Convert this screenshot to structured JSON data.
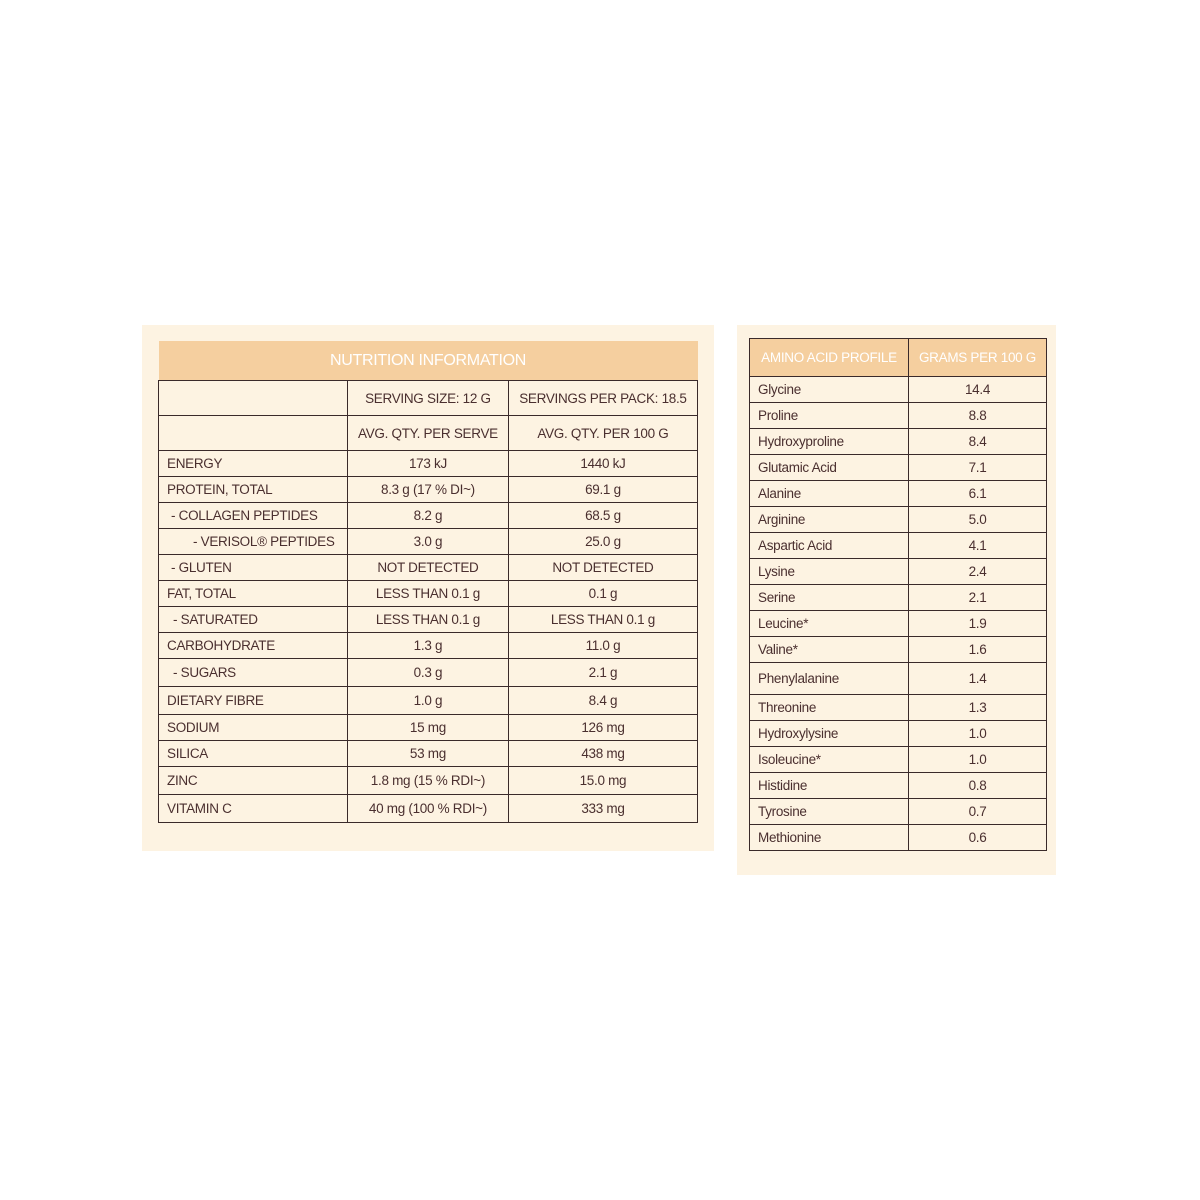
{
  "nutrition": {
    "title": "NUTRITION INFORMATION",
    "serving_size": "SERVING SIZE: 12 G",
    "servings_per_pack": "SERVINGS PER PACK: 18.5",
    "col_per_serve": "AVG. QTY.  PER SERVE",
    "col_per_100g": "AVG. QTY. PER 100 G",
    "rows": [
      {
        "name": "ENERGY",
        "serve": "173 kJ",
        "per100": "1440 kJ"
      },
      {
        "name": "PROTEIN, TOTAL",
        "serve": "8.3 g (17 % DI~)",
        "per100": "69.1 g"
      },
      {
        "name": "- COLLAGEN PEPTIDES",
        "serve": "8.2 g",
        "per100": "68.5 g"
      },
      {
        "name": "- VERISOL® PEPTIDES",
        "serve": "3.0 g",
        "per100": "25.0 g"
      },
      {
        "name": "- GLUTEN",
        "serve": "NOT DETECTED",
        "per100": "NOT DETECTED"
      },
      {
        "name": "FAT, TOTAL",
        "serve": "LESS THAN 0.1 g",
        "per100": "0.1 g"
      },
      {
        "name": "- SATURATED",
        "serve": "LESS THAN 0.1 g",
        "per100": "LESS THAN 0.1 g"
      },
      {
        "name": "CARBOHYDRATE",
        "serve": "1.3 g",
        "per100": "11.0 g"
      },
      {
        "name": "- SUGARS",
        "serve": "0.3 g",
        "per100": "2.1 g"
      },
      {
        "name": "DIETARY FIBRE",
        "serve": "1.0 g",
        "per100": "8.4 g"
      },
      {
        "name": "SODIUM",
        "serve": "15 mg",
        "per100": "126 mg"
      },
      {
        "name": "SILICA",
        "serve": "53 mg",
        "per100": "438 mg"
      },
      {
        "name": "ZINC",
        "serve": "1.8 mg (15 % RDI~)",
        "per100": "15.0 mg"
      },
      {
        "name": "VITAMIN C",
        "serve": "40 mg (100 % RDI~)",
        "per100": "333 mg"
      }
    ]
  },
  "amino": {
    "col_name": "AMINO ACID PROFILE",
    "col_value": "GRAMS PER 100 G",
    "rows": [
      {
        "name": "Glycine",
        "value": "14.4"
      },
      {
        "name": "Proline",
        "value": "8.8"
      },
      {
        "name": "Hydroxyproline",
        "value": "8.4"
      },
      {
        "name": "Glutamic Acid",
        "value": "7.1"
      },
      {
        "name": "Alanine",
        "value": "6.1"
      },
      {
        "name": "Arginine",
        "value": "5.0"
      },
      {
        "name": "Aspartic Acid",
        "value": "4.1"
      },
      {
        "name": "Lysine",
        "value": "2.4"
      },
      {
        "name": "Serine",
        "value": "2.1"
      },
      {
        "name": "Leucine*",
        "value": "1.9"
      },
      {
        "name": "Valine*",
        "value": "1.6"
      },
      {
        "name": "Phenylalanine",
        "value": "1.4"
      },
      {
        "name": "Threonine",
        "value": "1.3"
      },
      {
        "name": "Hydroxylysine",
        "value": "1.0"
      },
      {
        "name": "Isoleucine*",
        "value": "1.0"
      },
      {
        "name": "Histidine",
        "value": "0.8"
      },
      {
        "name": "Tyrosine",
        "value": "0.7"
      },
      {
        "name": "Methionine",
        "value": "0.6"
      }
    ]
  },
  "colors": {
    "panel_bg": "#fdf3e2",
    "header_bg": "#f5cf9f",
    "text": "#4a2f2f"
  }
}
